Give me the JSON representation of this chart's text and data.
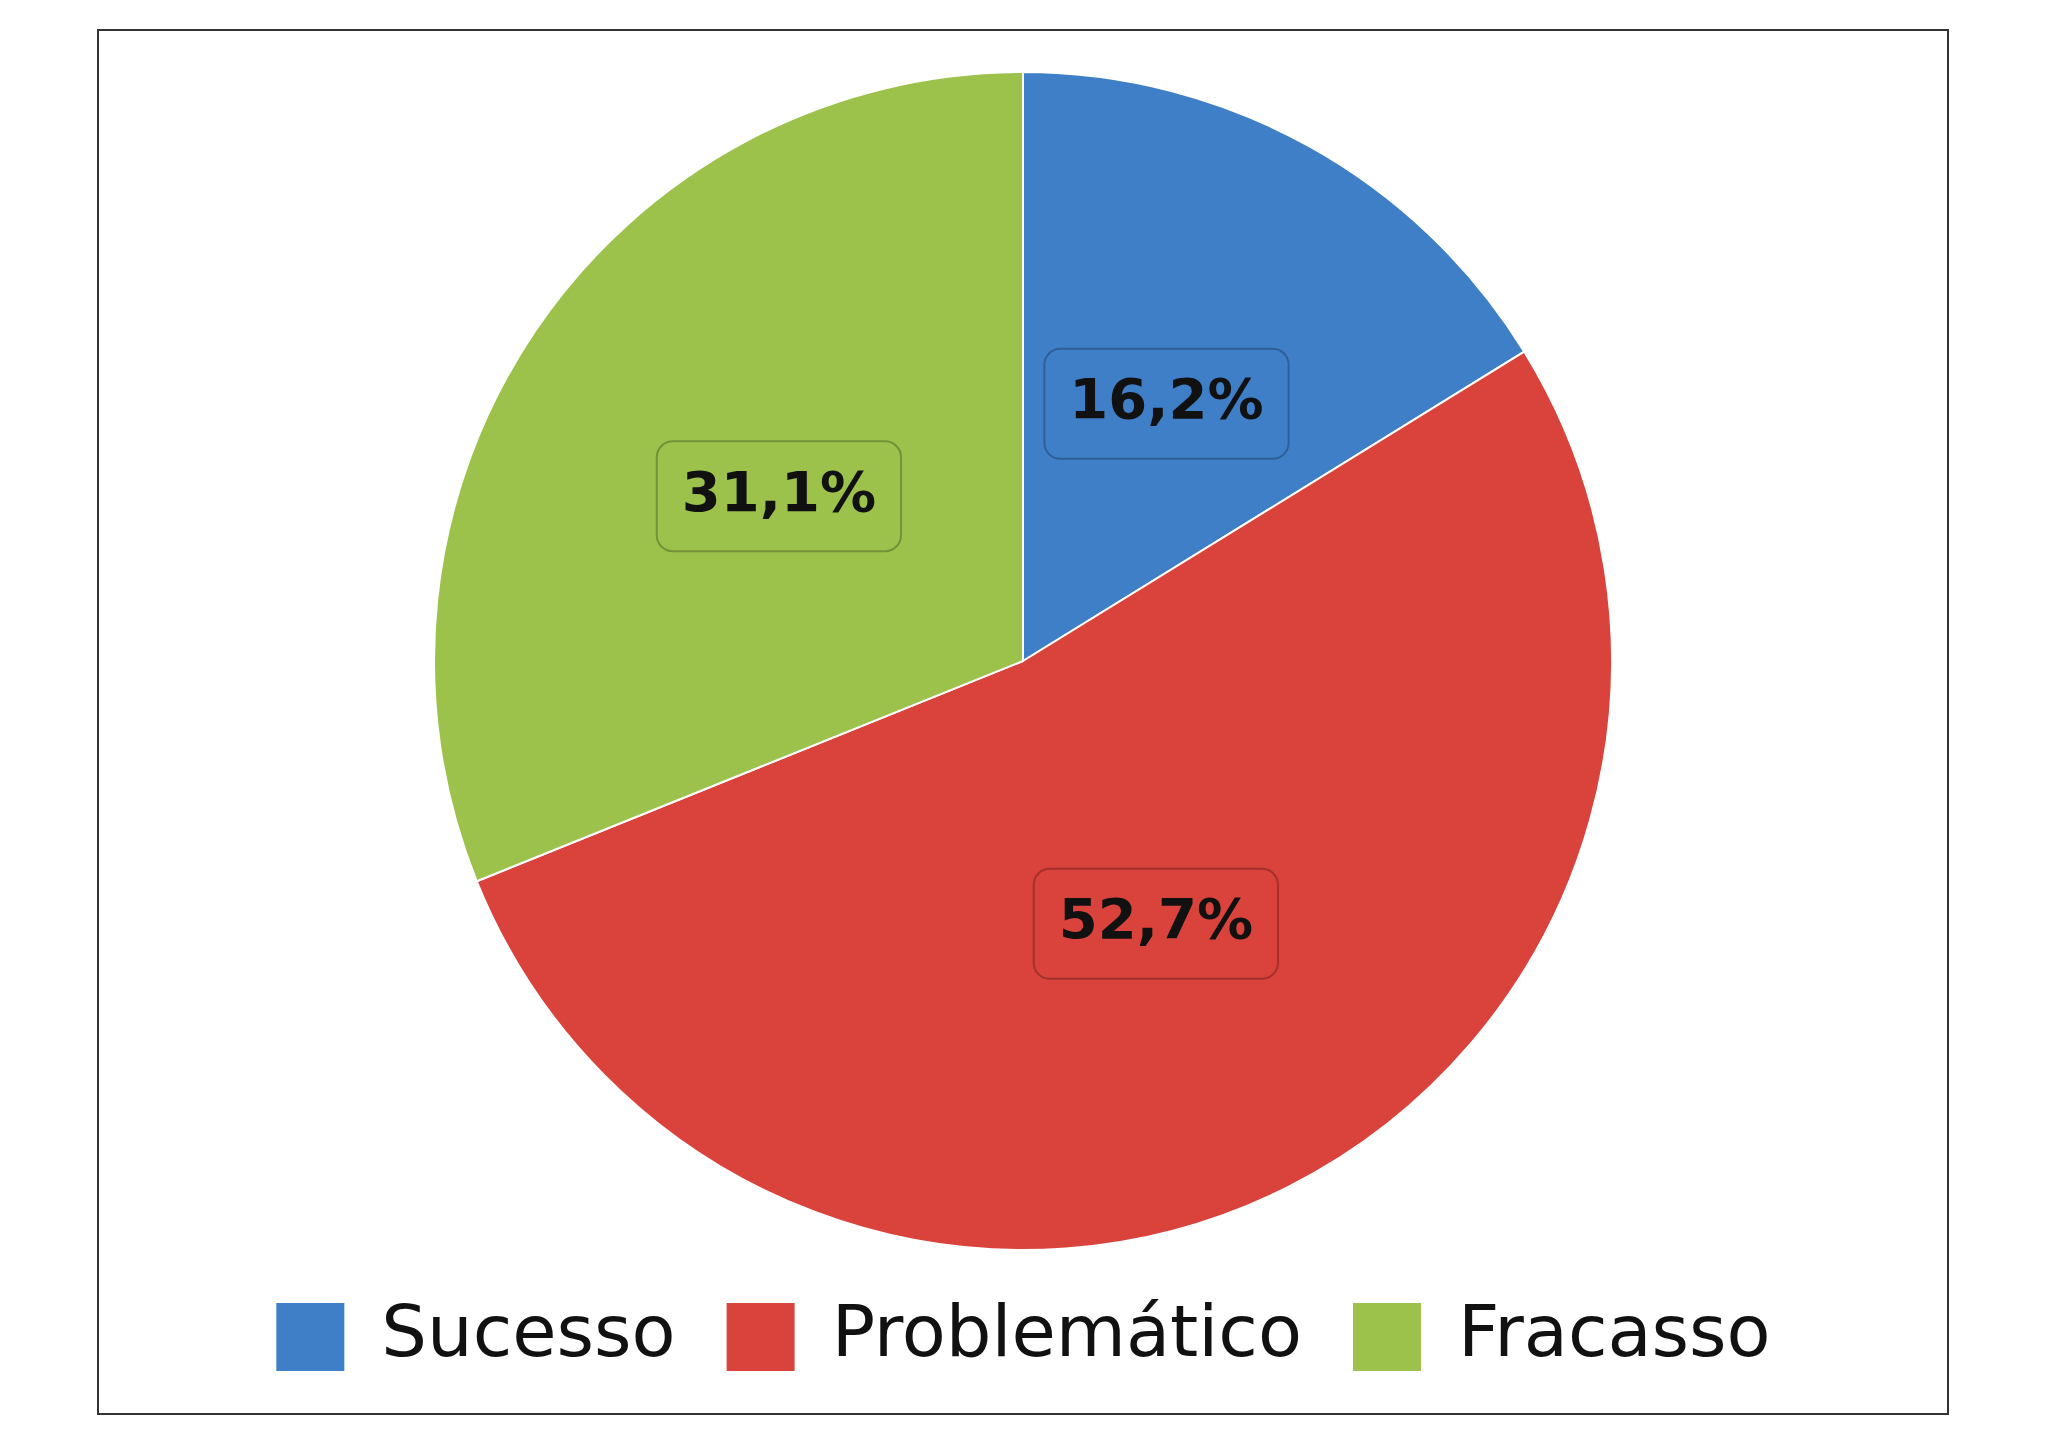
{
  "chart_data": {
    "type": "pie",
    "categories": [
      "Sucesso",
      "Problemático",
      "Fracasso"
    ],
    "values": [
      16.2,
      52.7,
      31.1
    ],
    "colors": [
      "#3f7fc8",
      "#d9433b",
      "#9cc24c"
    ],
    "value_labels": [
      "16,2%",
      "52,7%",
      "31,1%"
    ],
    "legend": "bottom"
  }
}
